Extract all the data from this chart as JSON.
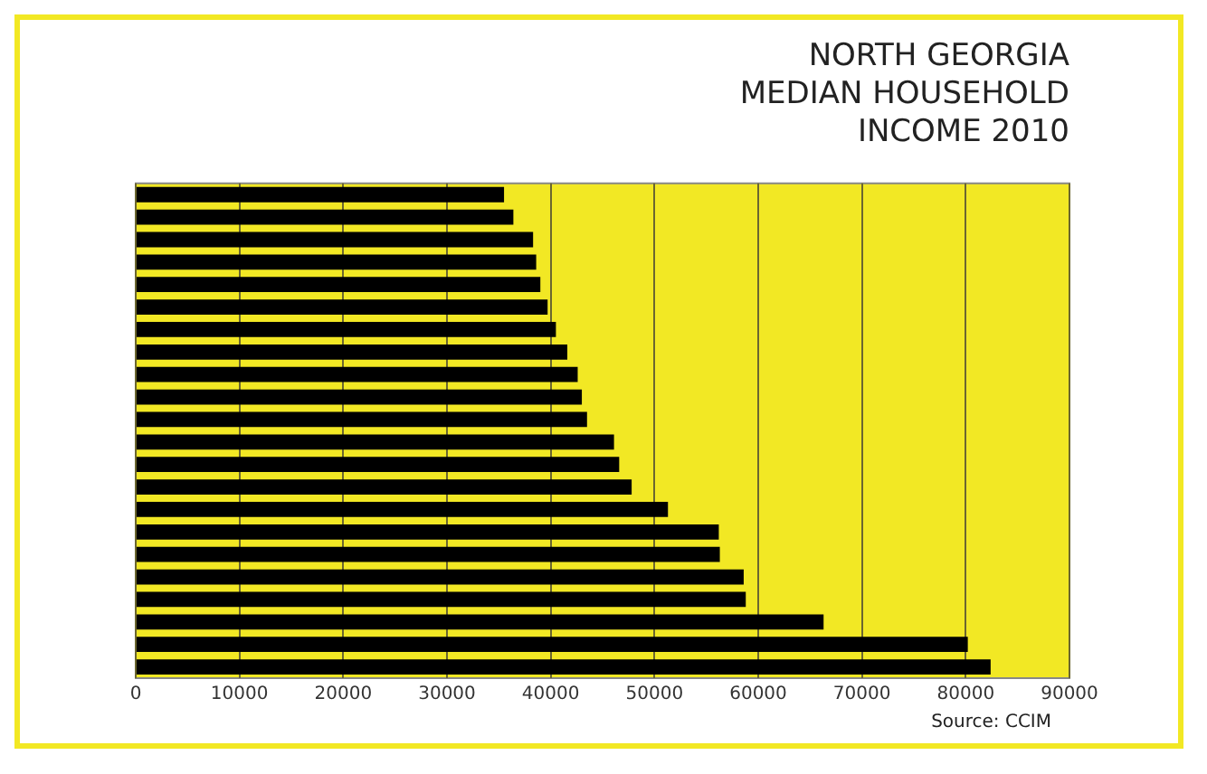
{
  "chart_data": {
    "type": "bar",
    "orientation": "horizontal",
    "title": "NORTH GEORGIA\nMEDIAN HOUSEHOLD\nINCOME 2010",
    "categories": [
      null,
      null,
      null,
      null,
      null,
      null,
      null,
      null,
      null,
      null,
      null,
      null,
      null,
      null,
      null,
      null,
      null,
      null,
      null,
      null,
      null,
      null
    ],
    "values": [
      35500,
      36400,
      38300,
      38600,
      39000,
      39700,
      40500,
      41600,
      42600,
      43000,
      43500,
      46100,
      46600,
      47800,
      51300,
      56200,
      56300,
      58600,
      58800,
      66300,
      80200,
      82400
    ],
    "color": "#000000",
    "xlim": [
      0,
      90000
    ],
    "xticks": [
      0,
      10000,
      20000,
      30000,
      40000,
      50000,
      60000,
      70000,
      80000,
      90000
    ],
    "grid": "x",
    "legend": false,
    "annotations": [
      "Source: CCIM"
    ]
  }
}
